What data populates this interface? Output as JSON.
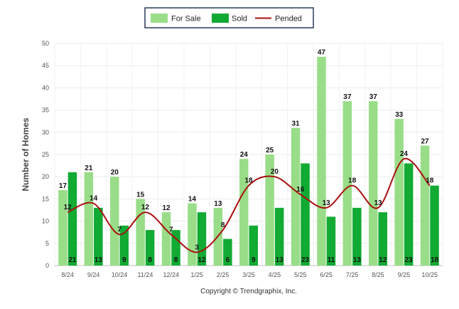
{
  "chart_data": {
    "type": "bar",
    "title": "",
    "xlabel": "",
    "ylabel": "Number of Homes",
    "ylim": [
      0,
      50
    ],
    "yticks": [
      0,
      5,
      10,
      15,
      20,
      25,
      30,
      35,
      40,
      45,
      50
    ],
    "categories": [
      "8/24",
      "9/24",
      "10/24",
      "11/24",
      "12/24",
      "1/25",
      "2/25",
      "3/25",
      "4/25",
      "5/25",
      "6/25",
      "7/25",
      "8/25",
      "9/25",
      "10/25"
    ],
    "series": [
      {
        "name": "For Sale",
        "type": "bar",
        "color": "#99dd88",
        "values": [
          17,
          21,
          20,
          15,
          12,
          14,
          13,
          24,
          25,
          31,
          47,
          37,
          37,
          33,
          27
        ]
      },
      {
        "name": "Sold",
        "type": "bar",
        "color": "#11aa33",
        "values": [
          21,
          13,
          9,
          8,
          8,
          12,
          6,
          9,
          13,
          23,
          11,
          13,
          12,
          23,
          18
        ]
      },
      {
        "name": "Pended",
        "type": "line",
        "color": "#aa1111",
        "values": [
          12,
          14,
          7,
          12,
          7,
          3,
          8,
          18,
          20,
          16,
          13,
          18,
          13,
          24,
          18
        ]
      }
    ],
    "legend": {
      "position": "top-center",
      "items": [
        "For Sale",
        "Sold",
        "Pended"
      ]
    },
    "grid": true
  },
  "footer": {
    "copyright": "Copyright © Trendgraphix, Inc."
  }
}
